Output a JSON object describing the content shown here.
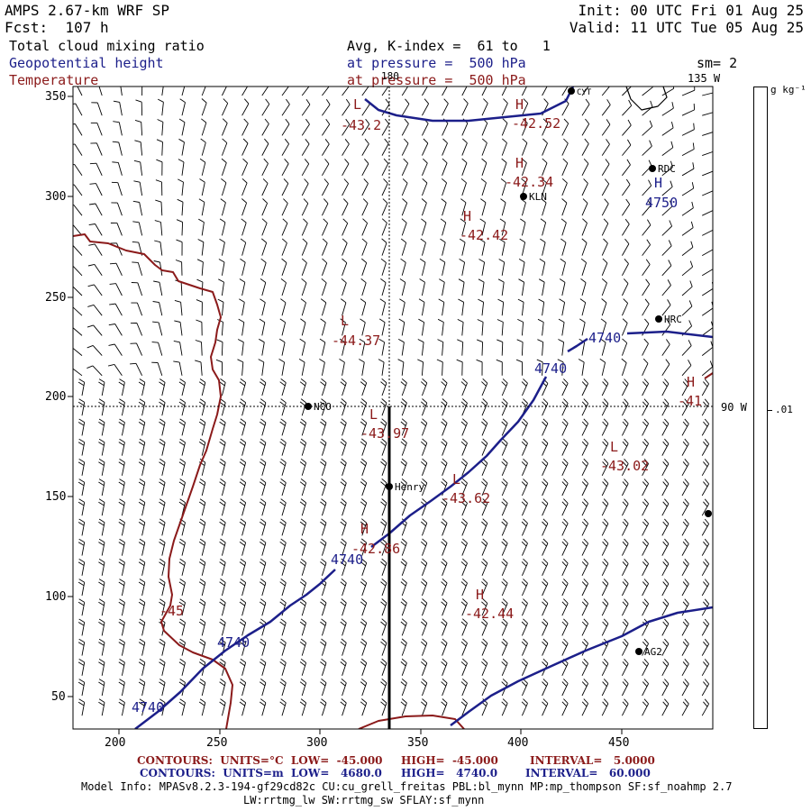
{
  "header": {
    "model": "AMPS 2.67-km WRF SP",
    "forecast": "Fcst:  107 h",
    "init": "Init: 00 UTC Fri 01 Aug 25",
    "valid": "Valid: 11 UTC Tue 05 Aug 25",
    "field1": "Total cloud mixing ratio",
    "field2": "Geopotential height",
    "field3": "Temperature",
    "avg": "Avg, K-index =  61 to   1",
    "pressure1": "at pressure =  500 hPa",
    "pressure2": "at pressure =  500 hPa",
    "smoothing": "sm= 2"
  },
  "map": {
    "lon_top": "180",
    "lon_top_right": "135 W",
    "lon_right": "90 W",
    "colorbar_unit": "g kg⁻¹",
    "colorbar_tick": ".01",
    "x_ticks": [
      "200",
      "250",
      "300",
      "350",
      "400",
      "450"
    ],
    "y_ticks": [
      "350",
      "300",
      "250",
      "200",
      "150",
      "100",
      "50"
    ],
    "stations": [
      {
        "name": "NCO"
      },
      {
        "name": "Henry"
      },
      {
        "name": "KLN"
      },
      {
        "name": "RDC"
      },
      {
        "name": "HRC"
      },
      {
        "name": "AG2"
      },
      {
        "name": "CYT"
      }
    ],
    "temp_labels": [
      {
        "letter": "L",
        "value": "-43.2"
      },
      {
        "letter": "H",
        "value": "-42.52"
      },
      {
        "letter": "H",
        "value": "-42.34"
      },
      {
        "letter": "H",
        "value": "-42.42"
      },
      {
        "letter": "L",
        "value": "-44.37"
      },
      {
        "letter": "L",
        "value": "-43.97"
      },
      {
        "letter": "L",
        "value": "-43.62"
      },
      {
        "letter": "H",
        "value": "-42.86"
      },
      {
        "letter": "H",
        "value": "-42.44"
      },
      {
        "letter": "L",
        "value": "-43.02"
      },
      {
        "letter": "H",
        "value": "-41"
      }
    ],
    "temp_contour_label": "-45",
    "height_labels": [
      "4740",
      "4740",
      "4740",
      "4740",
      "4740"
    ],
    "height_H": {
      "letter": "H",
      "value": "4750"
    },
    "colors": {
      "temperature": "#8b1a1a",
      "height": "#1c1f8a",
      "wind": "#000000",
      "border": "#000000"
    }
  },
  "footer": {
    "line1_a": "CONTOURS:  UNITS=°C  LOW=  -45.000",
    "line1_b": "HIGH=  -45.000",
    "line1_c": "INTERVAL=   5.0000",
    "line2_a": "CONTOURS:  UNITS=m  LOW=   4680.0",
    "line2_b": "HIGH=   4740.0",
    "line2_c": "INTERVAL=   60.000",
    "model_info": "Model Info: MPASv8.2.3-194-gf29cd82c CU:cu_grell_freitas PBL:bl_mynn MP:mp_thompson SF:sf_noahmp 2.7",
    "model_info2": "LW:rrtmg_lw SW:rrtmg_sw SFLAY:sf_mynn"
  }
}
